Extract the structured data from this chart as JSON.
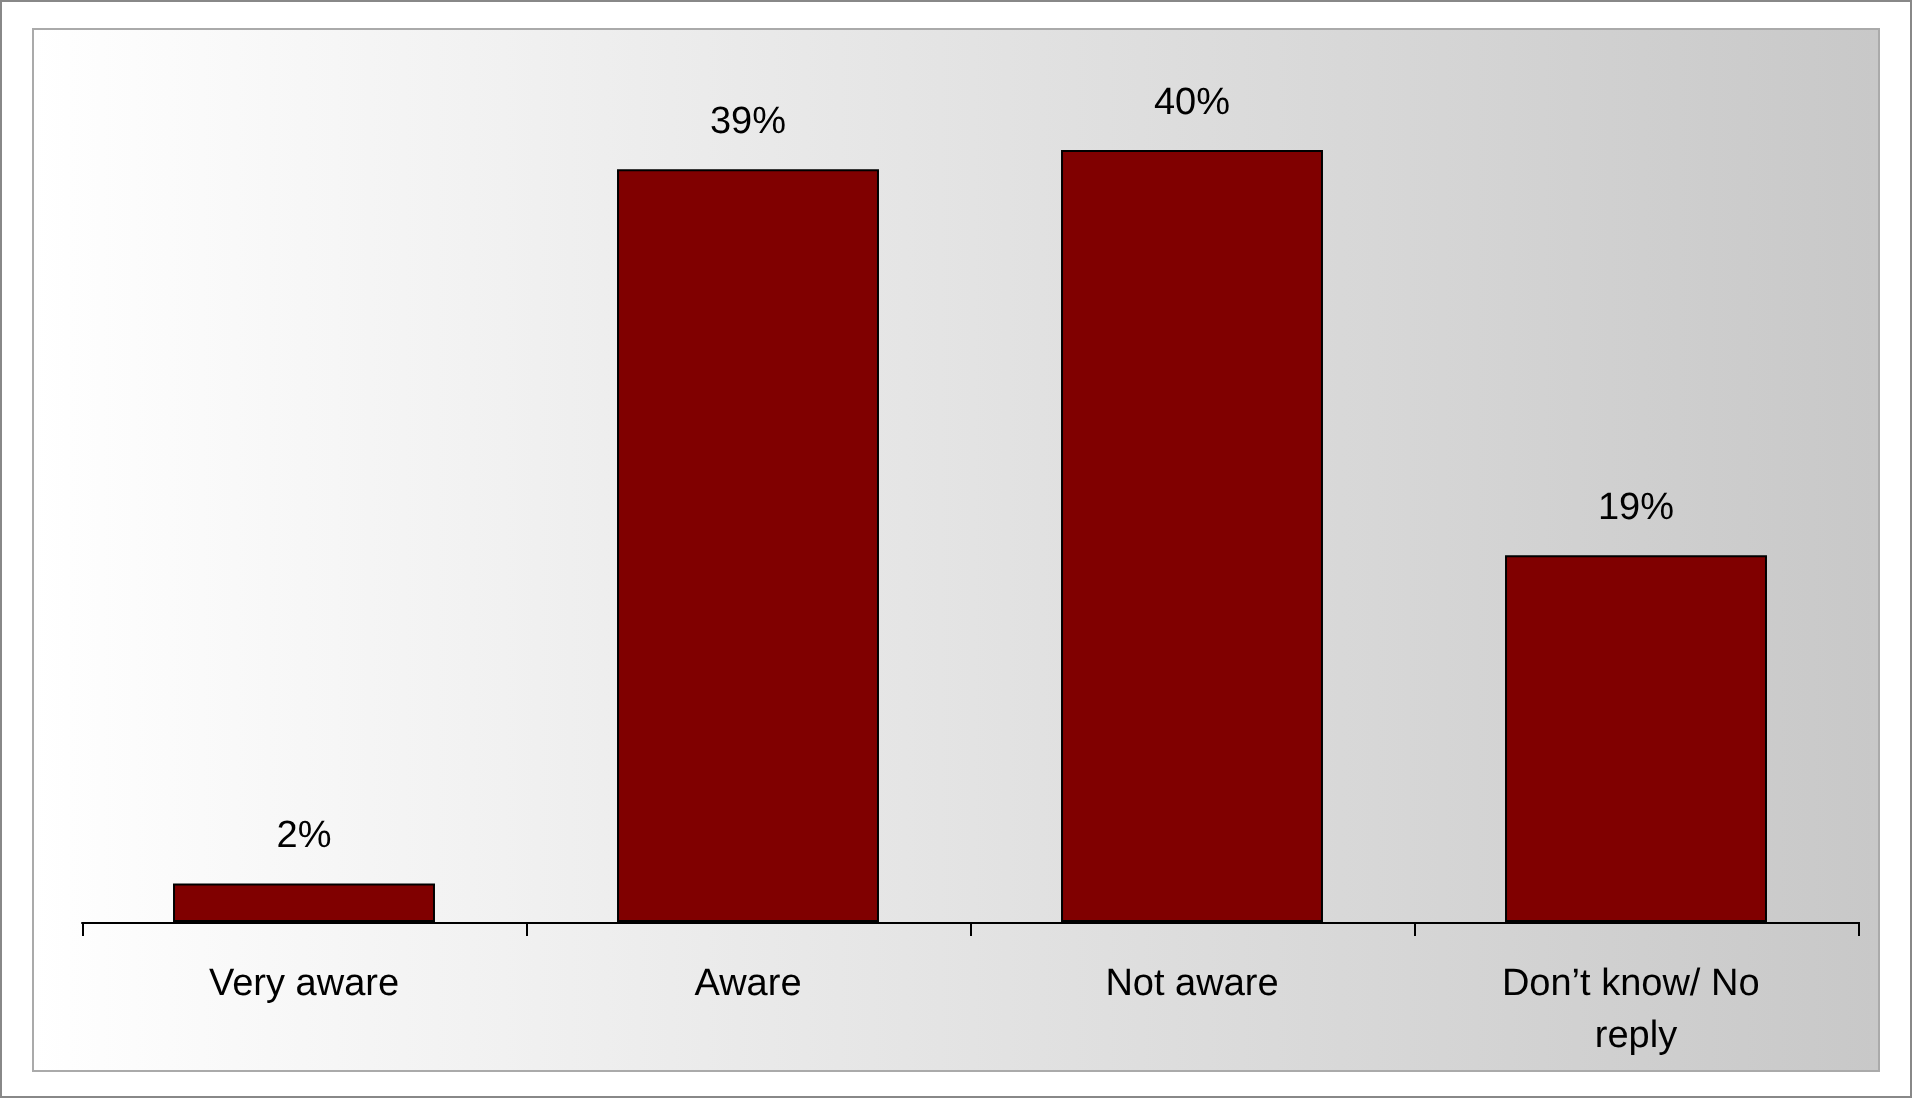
{
  "chart_data": {
    "type": "bar",
    "categories": [
      "Very aware",
      "Aware",
      "Not aware",
      "Don’t know/ No reply"
    ],
    "values": [
      2,
      39,
      40,
      19
    ],
    "value_labels": [
      "2%",
      "39%",
      "40%",
      "19%"
    ],
    "color": "#800000"
  }
}
